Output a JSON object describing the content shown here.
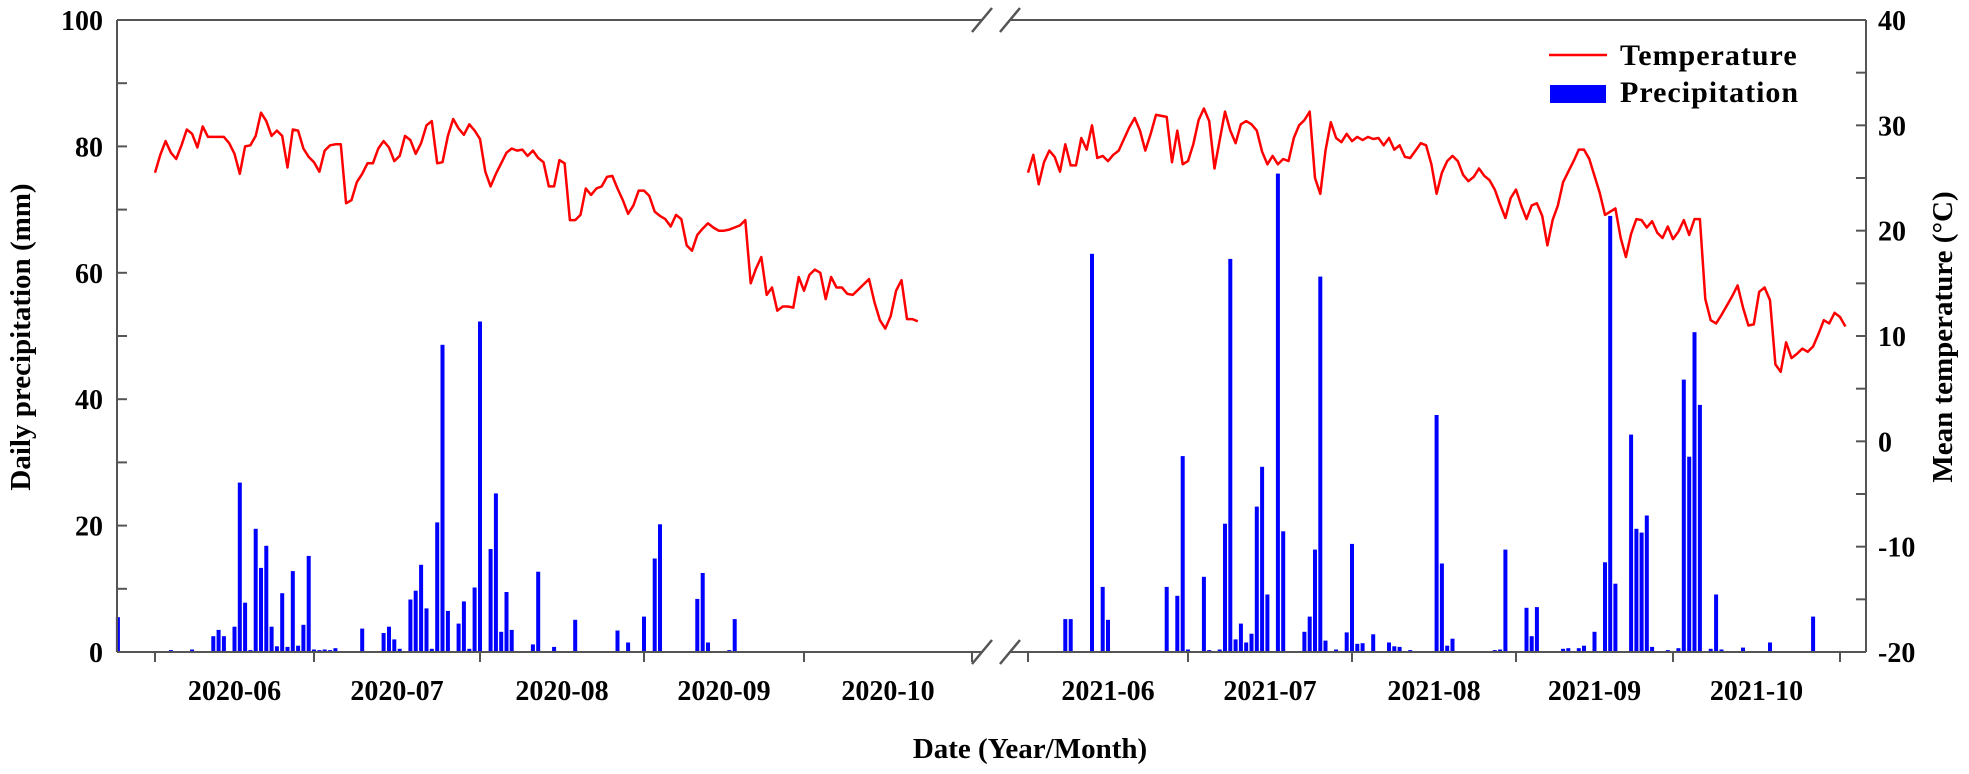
{
  "chart_data": {
    "type": "bar+line",
    "title": "",
    "xlabel": "Date (Year/Month)",
    "ylabel_left": "Daily precipitation (mm)",
    "ylabel_right": "Mean temperature (°C)",
    "ylim_left": [
      0,
      100
    ],
    "ylim_right": [
      -20,
      40
    ],
    "yticks_left": [
      0,
      20,
      40,
      60,
      80,
      100
    ],
    "yticks_right": [
      -20,
      -10,
      0,
      10,
      20,
      30,
      40
    ],
    "axis_break": true,
    "legend": {
      "position": "upper right",
      "entries": [
        {
          "label": "Temperature",
          "type": "line",
          "color": "#ff0000"
        },
        {
          "label": "Precipitation",
          "type": "bar",
          "color": "#0000ff"
        }
      ]
    },
    "colors": {
      "temperature": "#ff0000",
      "precipitation": "#0000ff",
      "axis": "#555555"
    },
    "panels": [
      {
        "year": 2020,
        "month_labels": [
          "2020-06",
          "2020-07",
          "2020-08",
          "2020-09",
          "2020-10"
        ],
        "x_range_days": [
          -7,
          153
        ],
        "temperature_start_day": 0,
        "temperature": [
          25.5,
          27.2,
          28.5,
          27.4,
          26.8,
          28.1,
          29.6,
          29.2,
          27.9,
          29.9,
          28.9,
          28.9,
          28.9,
          28.9,
          28.3,
          27.3,
          25.4,
          28.0,
          28.1,
          29.0,
          31.2,
          30.4,
          29.0,
          29.5,
          29.0,
          26.0,
          29.6,
          29.5,
          27.8,
          27.0,
          26.5,
          25.6,
          27.6,
          28.1,
          28.2,
          28.2,
          22.6,
          22.9,
          24.6,
          25.4,
          26.4,
          26.4,
          27.8,
          28.5,
          27.9,
          26.6,
          27.1,
          29.0,
          28.6,
          27.3,
          28.3,
          30.0,
          30.4,
          26.4,
          26.5,
          29.0,
          30.6,
          29.7,
          29.1,
          30.1,
          29.5,
          28.7,
          25.6,
          24.2,
          25.4,
          26.4,
          27.4,
          27.8,
          27.6,
          27.7,
          27.1,
          27.6,
          26.9,
          26.5,
          24.2,
          24.2,
          26.7,
          26.4,
          21.0,
          21.0,
          21.5,
          24.0,
          23.4,
          24.0,
          24.2,
          25.1,
          25.2,
          24.0,
          22.9,
          21.6,
          22.4,
          23.8,
          23.8,
          23.3,
          21.8,
          21.4,
          21.1,
          20.4,
          21.5,
          21.1,
          18.6,
          18.1,
          19.6,
          20.2,
          20.7,
          20.3,
          20.0,
          20.0,
          20.1,
          20.3,
          20.5,
          21.0,
          15.0,
          16.4,
          17.5,
          13.9,
          14.6,
          12.4,
          12.8,
          12.8,
          12.7,
          15.6,
          14.3,
          15.8,
          16.3,
          16.0,
          13.5,
          15.6,
          14.6,
          14.6,
          14.0,
          13.9,
          14.4,
          14.9,
          15.4,
          13.2,
          11.5,
          10.7,
          11.9,
          14.3,
          15.3,
          11.6,
          11.6,
          11.4
        ],
        "precipitation": [
          {
            "day": -7,
            "mm": 5.5
          },
          {
            "day": 3,
            "mm": 0.3
          },
          {
            "day": 7,
            "mm": 0.4
          },
          {
            "day": 11,
            "mm": 2.5
          },
          {
            "day": 12,
            "mm": 3.5
          },
          {
            "day": 13,
            "mm": 2.5
          },
          {
            "day": 15,
            "mm": 4.0
          },
          {
            "day": 16,
            "mm": 26.8
          },
          {
            "day": 17,
            "mm": 7.8
          },
          {
            "day": 18,
            "mm": 0.3
          },
          {
            "day": 19,
            "mm": 19.5
          },
          {
            "day": 20,
            "mm": 13.3
          },
          {
            "day": 21,
            "mm": 16.8
          },
          {
            "day": 22,
            "mm": 4.0
          },
          {
            "day": 23,
            "mm": 0.9
          },
          {
            "day": 24,
            "mm": 9.3
          },
          {
            "day": 25,
            "mm": 0.8
          },
          {
            "day": 26,
            "mm": 12.8
          },
          {
            "day": 27,
            "mm": 1.0
          },
          {
            "day": 28,
            "mm": 4.3
          },
          {
            "day": 29,
            "mm": 15.2
          },
          {
            "day": 30,
            "mm": 0.4
          },
          {
            "day": 31,
            "mm": 0.3
          },
          {
            "day": 32,
            "mm": 0.4
          },
          {
            "day": 33,
            "mm": 0.3
          },
          {
            "day": 34,
            "mm": 0.6
          },
          {
            "day": 39,
            "mm": 3.7
          },
          {
            "day": 43,
            "mm": 3.0
          },
          {
            "day": 44,
            "mm": 4.0
          },
          {
            "day": 45,
            "mm": 2.0
          },
          {
            "day": 46,
            "mm": 0.5
          },
          {
            "day": 48,
            "mm": 8.3
          },
          {
            "day": 49,
            "mm": 9.7
          },
          {
            "day": 50,
            "mm": 13.8
          },
          {
            "day": 51,
            "mm": 6.9
          },
          {
            "day": 52,
            "mm": 0.5
          },
          {
            "day": 53,
            "mm": 20.5
          },
          {
            "day": 54,
            "mm": 48.6
          },
          {
            "day": 55,
            "mm": 6.5
          },
          {
            "day": 57,
            "mm": 4.5
          },
          {
            "day": 58,
            "mm": 8.0
          },
          {
            "day": 59,
            "mm": 0.5
          },
          {
            "day": 60,
            "mm": 10.2
          },
          {
            "day": 61,
            "mm": 52.3
          },
          {
            "day": 63,
            "mm": 16.3
          },
          {
            "day": 64,
            "mm": 25.1
          },
          {
            "day": 65,
            "mm": 3.2
          },
          {
            "day": 66,
            "mm": 9.5
          },
          {
            "day": 67,
            "mm": 3.5
          },
          {
            "day": 71,
            "mm": 1.2
          },
          {
            "day": 72,
            "mm": 12.7
          },
          {
            "day": 75,
            "mm": 0.8
          },
          {
            "day": 79,
            "mm": 5.1
          },
          {
            "day": 87,
            "mm": 3.4
          },
          {
            "day": 89,
            "mm": 1.5
          },
          {
            "day": 92,
            "mm": 5.6
          },
          {
            "day": 94,
            "mm": 14.8
          },
          {
            "day": 95,
            "mm": 20.2
          },
          {
            "day": 102,
            "mm": 8.4
          },
          {
            "day": 103,
            "mm": 12.5
          },
          {
            "day": 104,
            "mm": 1.5
          },
          {
            "day": 108,
            "mm": 0.3
          },
          {
            "day": 109,
            "mm": 5.2
          }
        ]
      },
      {
        "year": 2021,
        "month_labels": [
          "2021-06",
          "2021-07",
          "2021-08",
          "2021-09",
          "2021-10"
        ],
        "x_range_days": [
          -1,
          153
        ],
        "temperature_start_day": 0,
        "temperature": [
          25.5,
          27.2,
          24.4,
          26.5,
          27.6,
          27.0,
          25.6,
          28.2,
          26.2,
          26.2,
          28.8,
          27.7,
          30.0,
          26.9,
          27.1,
          26.6,
          27.2,
          27.6,
          28.7,
          29.8,
          30.7,
          29.5,
          27.6,
          29.2,
          31.0,
          30.9,
          30.8,
          26.5,
          29.5,
          26.3,
          26.6,
          28.2,
          30.5,
          31.6,
          30.4,
          25.9,
          28.6,
          31.3,
          29.5,
          28.3,
          30.1,
          30.4,
          30.1,
          29.5,
          27.5,
          26.3,
          27.1,
          26.3,
          26.8,
          26.6,
          28.8,
          30.0,
          30.5,
          31.3,
          25.0,
          23.5,
          27.6,
          30.3,
          28.8,
          28.4,
          29.2,
          28.5,
          28.9,
          28.6,
          28.9,
          28.7,
          28.8,
          28.1,
          28.8,
          27.7,
          28.1,
          27.0,
          26.9,
          27.6,
          28.3,
          28.1,
          26.3,
          23.5,
          25.5,
          26.6,
          27.1,
          26.6,
          25.3,
          24.7,
          25.1,
          25.9,
          25.2,
          24.8,
          23.9,
          22.5,
          21.2,
          23.1,
          23.9,
          22.4,
          21.1,
          22.4,
          22.6,
          21.4,
          18.6,
          21.0,
          22.4,
          24.6,
          25.6,
          26.6,
          27.7,
          27.7,
          26.8,
          25.2,
          23.6,
          21.5,
          21.8,
          22.1,
          19.3,
          17.5,
          19.7,
          21.1,
          21.0,
          20.3,
          20.9,
          19.8,
          19.3,
          20.4,
          19.2,
          19.9,
          21.0,
          19.6,
          21.1,
          21.1,
          13.5,
          11.5,
          11.2,
          12.0,
          12.9,
          13.8,
          14.8,
          12.7,
          11.0,
          11.1,
          14.2,
          14.6,
          13.4,
          7.3,
          6.6,
          9.4,
          7.9,
          8.3,
          8.8,
          8.5,
          9.0,
          10.2,
          11.5,
          11.2,
          12.2,
          11.8,
          10.9
        ],
        "precipitation": [
          {
            "day": 7,
            "mm": 5.2
          },
          {
            "day": 8,
            "mm": 5.2
          },
          {
            "day": 12,
            "mm": 63.0
          },
          {
            "day": 14,
            "mm": 10.3
          },
          {
            "day": 15,
            "mm": 5.1
          },
          {
            "day": 26,
            "mm": 10.3
          },
          {
            "day": 28,
            "mm": 8.9
          },
          {
            "day": 29,
            "mm": 31.0
          },
          {
            "day": 30,
            "mm": 0.4
          },
          {
            "day": 33,
            "mm": 11.9
          },
          {
            "day": 34,
            "mm": 0.3
          },
          {
            "day": 36,
            "mm": 0.4
          },
          {
            "day": 37,
            "mm": 20.3
          },
          {
            "day": 38,
            "mm": 62.2
          },
          {
            "day": 39,
            "mm": 2.0
          },
          {
            "day": 40,
            "mm": 4.5
          },
          {
            "day": 41,
            "mm": 1.5
          },
          {
            "day": 42,
            "mm": 2.9
          },
          {
            "day": 43,
            "mm": 23.0
          },
          {
            "day": 44,
            "mm": 29.3
          },
          {
            "day": 45,
            "mm": 9.1
          },
          {
            "day": 47,
            "mm": 75.7
          },
          {
            "day": 48,
            "mm": 19.1
          },
          {
            "day": 52,
            "mm": 3.2
          },
          {
            "day": 53,
            "mm": 5.6
          },
          {
            "day": 54,
            "mm": 16.2
          },
          {
            "day": 55,
            "mm": 59.4
          },
          {
            "day": 56,
            "mm": 1.8
          },
          {
            "day": 58,
            "mm": 0.4
          },
          {
            "day": 60,
            "mm": 3.1
          },
          {
            "day": 61,
            "mm": 17.1
          },
          {
            "day": 62,
            "mm": 1.3
          },
          {
            "day": 63,
            "mm": 1.4
          },
          {
            "day": 65,
            "mm": 2.8
          },
          {
            "day": 68,
            "mm": 1.5
          },
          {
            "day": 69,
            "mm": 0.9
          },
          {
            "day": 70,
            "mm": 0.8
          },
          {
            "day": 72,
            "mm": 0.3
          },
          {
            "day": 77,
            "mm": 37.5
          },
          {
            "day": 78,
            "mm": 14.0
          },
          {
            "day": 79,
            "mm": 1.0
          },
          {
            "day": 80,
            "mm": 2.1
          },
          {
            "day": 88,
            "mm": 0.3
          },
          {
            "day": 89,
            "mm": 0.4
          },
          {
            "day": 90,
            "mm": 16.2
          },
          {
            "day": 94,
            "mm": 7.0
          },
          {
            "day": 95,
            "mm": 2.5
          },
          {
            "day": 96,
            "mm": 7.1
          },
          {
            "day": 101,
            "mm": 0.5
          },
          {
            "day": 102,
            "mm": 0.6
          },
          {
            "day": 104,
            "mm": 0.6
          },
          {
            "day": 105,
            "mm": 1.0
          },
          {
            "day": 107,
            "mm": 3.2
          },
          {
            "day": 109,
            "mm": 14.2
          },
          {
            "day": 110,
            "mm": 69.0
          },
          {
            "day": 111,
            "mm": 10.8
          },
          {
            "day": 114,
            "mm": 34.4
          },
          {
            "day": 115,
            "mm": 19.5
          },
          {
            "day": 116,
            "mm": 18.9
          },
          {
            "day": 117,
            "mm": 21.6
          },
          {
            "day": 118,
            "mm": 0.8
          },
          {
            "day": 121,
            "mm": 0.3
          },
          {
            "day": 123,
            "mm": 0.6
          },
          {
            "day": 124,
            "mm": 43.1
          },
          {
            "day": 125,
            "mm": 30.9
          },
          {
            "day": 126,
            "mm": 50.6
          },
          {
            "day": 127,
            "mm": 39.1
          },
          {
            "day": 129,
            "mm": 0.5
          },
          {
            "day": 130,
            "mm": 9.1
          },
          {
            "day": 131,
            "mm": 0.4
          },
          {
            "day": 135,
            "mm": 0.7
          },
          {
            "day": 140,
            "mm": 1.5
          },
          {
            "day": 148,
            "mm": 5.6
          }
        ]
      }
    ]
  },
  "axes": {
    "left_ticks": [
      "0",
      "20",
      "40",
      "60",
      "80",
      "100"
    ],
    "right_ticks": [
      "-20",
      "-10",
      "0",
      "10",
      "20",
      "30",
      "40"
    ],
    "xlabel": "Date (Year/Month)",
    "ylabel_left": "Daily precipitation (mm)",
    "ylabel_right": "Mean temperature (°C)"
  },
  "legend": {
    "temperature_label": "Temperature",
    "precipitation_label": "Precipitation"
  }
}
